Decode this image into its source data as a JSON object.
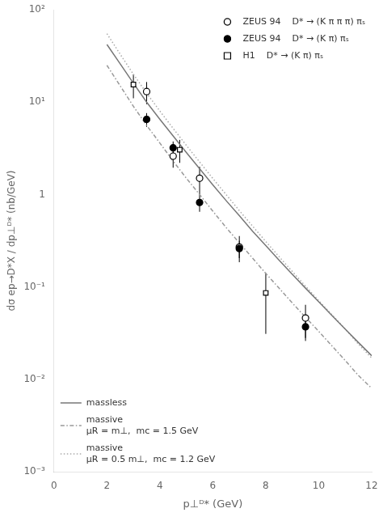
{
  "chart_data": {
    "type": "scatter",
    "x_label": "p⊥ᴰ* (GeV)",
    "y_label": "dσ ep→D*X / dp⊥ᴰ* (nb/GeV)",
    "xlim": [
      0,
      12
    ],
    "xticks": [
      0,
      2,
      4,
      6,
      8,
      10,
      12
    ],
    "ylim": [
      0.001,
      100
    ],
    "yticks": [
      {
        "value": 0.001,
        "label": "10⁻³"
      },
      {
        "value": 0.01,
        "label": "10⁻²"
      },
      {
        "value": 0.1,
        "label": "10⁻¹"
      },
      1,
      {
        "value": 10,
        "label": "10¹"
      },
      {
        "value": 100,
        "label": "10²"
      }
    ],
    "log": "y",
    "grid": false,
    "series": [
      {
        "name": "massive\nμR = 0.5 m⊥,  mc = 1.2 GeV",
        "type": "line",
        "line_style": "dotted",
        "color": "#aaaaaa",
        "legend": "lower left",
        "x": [
          2.0,
          2.5,
          3.0,
          3.5,
          4.0,
          4.5,
          5.0,
          5.5,
          6.0,
          6.5,
          7.0,
          7.5,
          8.0,
          8.5,
          9.0,
          9.5,
          10.0,
          10.5,
          11.0,
          11.5,
          12.0
        ],
        "values": [
          55,
          33,
          20,
          12.5,
          8.0,
          5.2,
          3.4,
          2.25,
          1.49,
          1.0,
          0.67,
          0.455,
          0.31,
          0.213,
          0.147,
          0.102,
          0.071,
          0.05,
          0.035,
          0.024,
          0.017
        ]
      },
      {
        "name": "massive\nμR = m⊥,  mc = 1.5 GeV",
        "type": "line",
        "line_style": "dashdot",
        "color": "#999999",
        "legend": "lower left",
        "x": [
          2.0,
          2.5,
          3.0,
          3.5,
          4.0,
          4.5,
          5.0,
          5.5,
          6.0,
          6.5,
          7.0,
          7.5,
          8.0,
          8.5,
          9.0,
          9.5,
          10.0,
          10.5,
          11.0,
          11.5,
          12.0
        ],
        "values": [
          25,
          15,
          9.0,
          5.6,
          3.6,
          2.3,
          1.5,
          1.0,
          0.66,
          0.44,
          0.3,
          0.205,
          0.14,
          0.097,
          0.067,
          0.047,
          0.033,
          0.023,
          0.016,
          0.011,
          0.008
        ]
      },
      {
        "name": "massless",
        "type": "line",
        "line_style": "solid",
        "color": "#777777",
        "legend": "lower left",
        "x": [
          2.0,
          2.5,
          3.0,
          3.5,
          4.0,
          4.5,
          5.0,
          5.5,
          6.0,
          6.5,
          7.0,
          7.5,
          8.0,
          8.5,
          9.0,
          9.5,
          10.0,
          10.5,
          11.0,
          11.5,
          12.0
        ],
        "values": [
          42,
          26,
          16,
          10,
          6.5,
          4.3,
          2.85,
          1.9,
          1.27,
          0.86,
          0.59,
          0.4,
          0.28,
          0.195,
          0.137,
          0.097,
          0.069,
          0.049,
          0.035,
          0.025,
          0.018
        ]
      },
      {
        "name": "ZEUS 94    D* → (K π π π) πₛ",
        "type": "scatter",
        "marker": "open_circle",
        "color": "#000000",
        "legend": "upper right",
        "x": [
          3.5,
          4.5,
          5.5,
          7.0,
          9.5
        ],
        "values": [
          13.0,
          2.6,
          1.5,
          0.27,
          0.046
        ],
        "yerr_minus": [
          3.5,
          0.65,
          0.5,
          0.085,
          0.018
        ],
        "yerr_plus": [
          3.5,
          0.65,
          0.5,
          0.085,
          0.018
        ]
      },
      {
        "name": "ZEUS 94    D* → (K π) πₛ",
        "type": "scatter",
        "marker": "filled_circle",
        "color": "#000000",
        "legend": "upper right",
        "x": [
          3.5,
          4.5,
          5.5,
          7.0,
          9.5
        ],
        "values": [
          6.5,
          3.2,
          0.82,
          0.26,
          0.037
        ],
        "yerr_minus": [
          1.1,
          0.55,
          0.17,
          0.055,
          0.011
        ],
        "yerr_plus": [
          1.1,
          0.55,
          0.17,
          0.055,
          0.011
        ]
      },
      {
        "name": "H1    D* → (K π) πₛ",
        "type": "scatter",
        "marker": "open_square",
        "color": "#000000",
        "legend": "upper right",
        "x": [
          3.0,
          4.75,
          8.0
        ],
        "values": [
          15.5,
          3.05,
          0.086
        ],
        "yerr_minus": [
          4.5,
          0.85,
          0.055
        ],
        "yerr_plus": [
          4.5,
          0.85,
          0.055
        ]
      }
    ]
  }
}
